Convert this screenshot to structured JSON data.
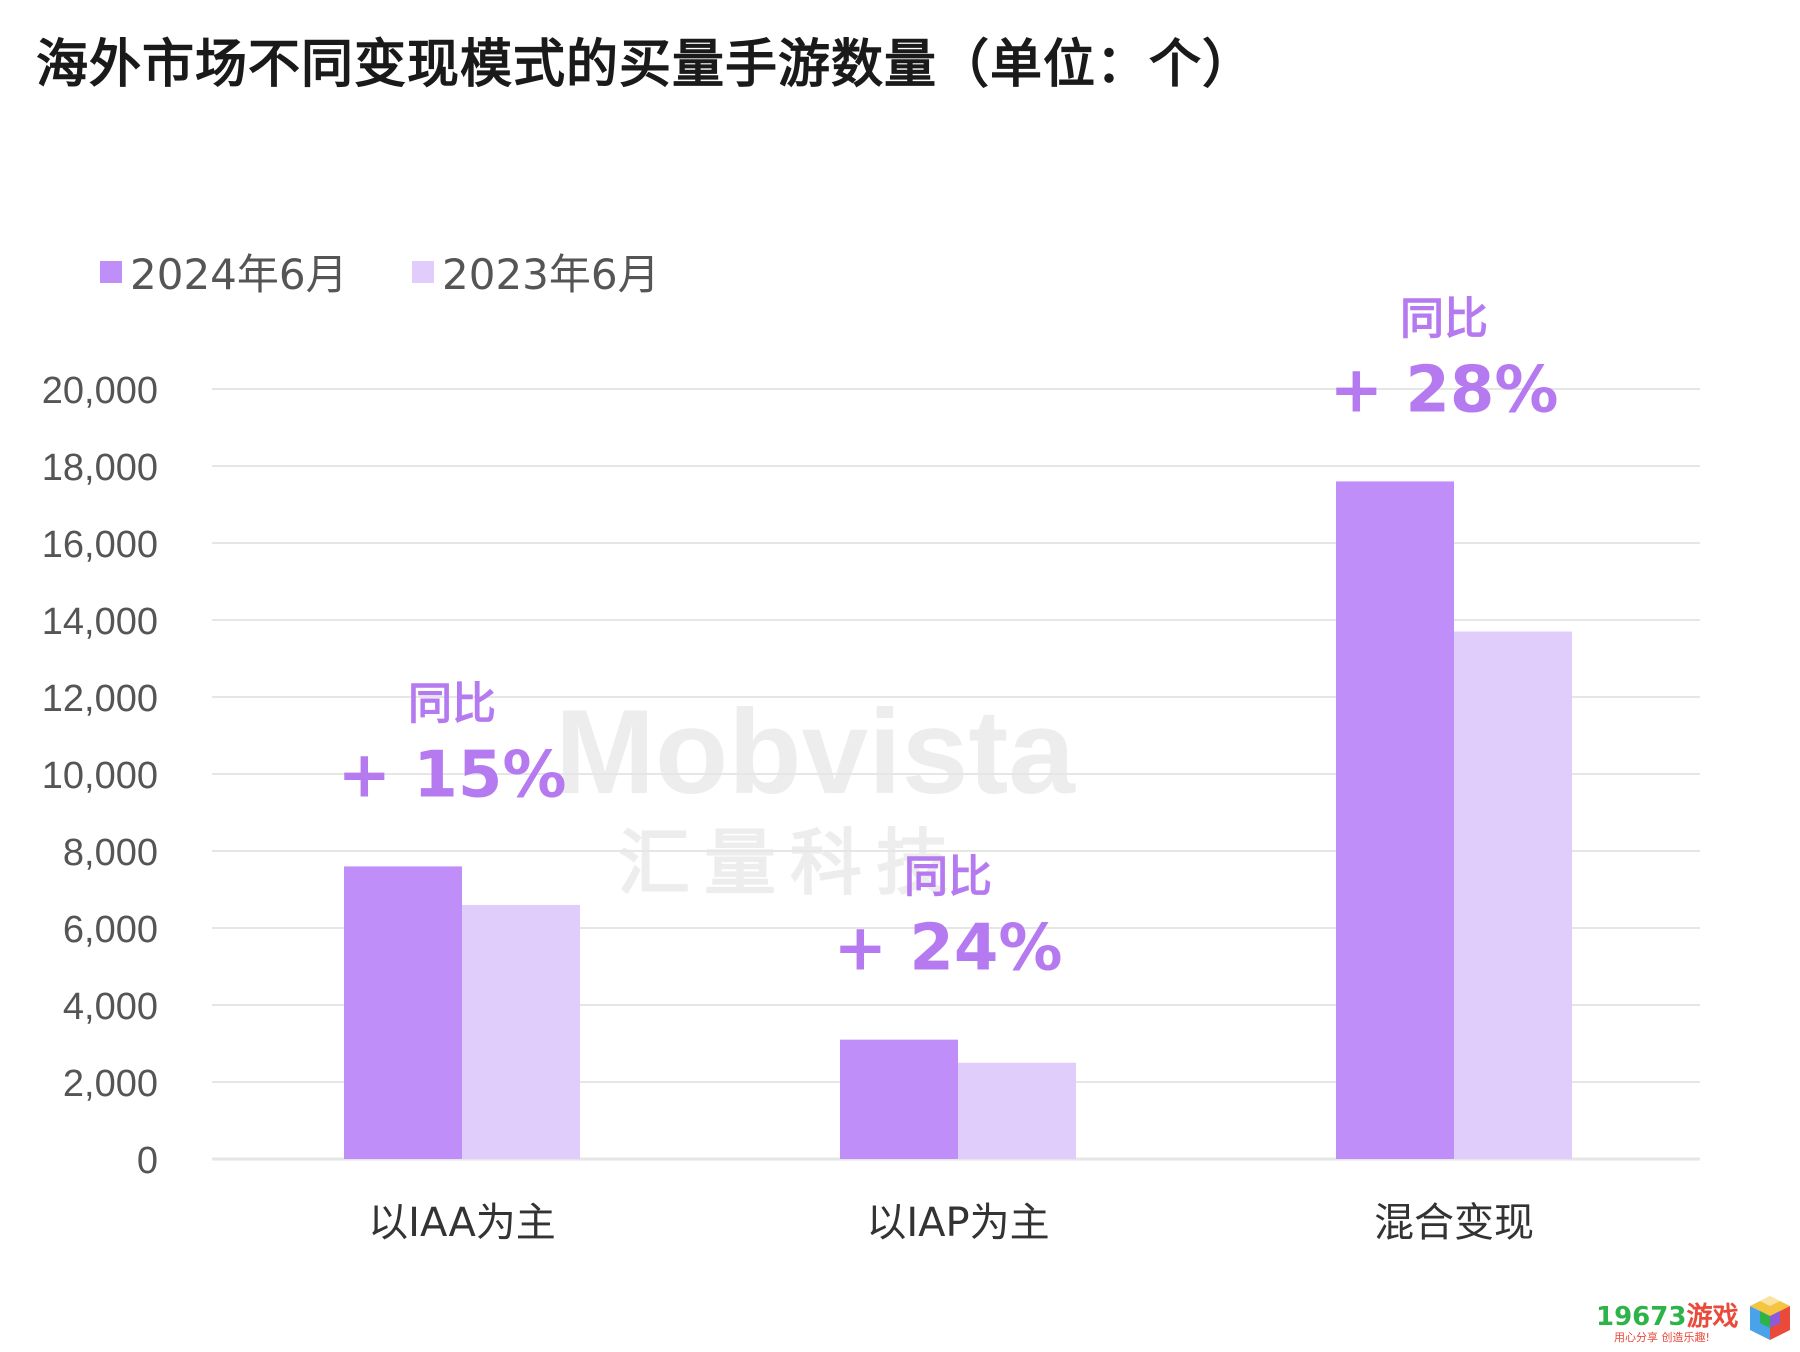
{
  "title": "海外市场不同变现模式的买量手游数量（单位：个）",
  "watermark": {
    "line1": "Mobvista",
    "line2": "汇量科技"
  },
  "logo": {
    "main": "19673",
    "cn": "游戏",
    "sub": "用心分享 创造乐趣!"
  },
  "colors": {
    "series1": "#c08ef8",
    "series2": "#e0cdfb",
    "annotation": "#b57af0",
    "grid": "#e6e6e6",
    "tick": "#555555"
  },
  "chart_data": {
    "type": "bar",
    "categories": [
      "以IAA为主",
      "以IAP为主",
      "混合变现"
    ],
    "series": [
      {
        "name": "2024年6月",
        "values": [
          7600,
          3100,
          17600
        ]
      },
      {
        "name": "2023年6月",
        "values": [
          6600,
          2500,
          13700
        ]
      }
    ],
    "ylim": [
      0,
      20000
    ],
    "yticks": [
      "0",
      "2,000",
      "4,000",
      "6,000",
      "8,000",
      "10,000",
      "12,000",
      "14,000",
      "16,000",
      "18,000",
      "20,000"
    ],
    "grid": true,
    "legend_position": "top-left",
    "annotations": [
      {
        "label": "同比",
        "value": "+ 15%"
      },
      {
        "label": "同比",
        "value": "+ 24%"
      },
      {
        "label": "同比",
        "value": "+ 28%"
      }
    ]
  }
}
